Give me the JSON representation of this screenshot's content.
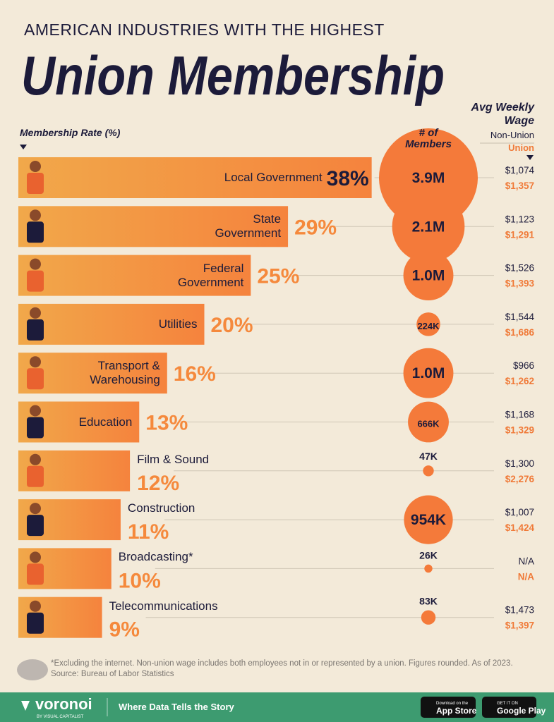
{
  "chart_data": {
    "type": "bar",
    "subtitle": "AMERICAN INDUSTRIES WITH THE HIGHEST",
    "title": "Union Membership",
    "wage_header": "Avg Weekly Wage",
    "categories": [
      "Local Government",
      "State Government",
      "Federal Government",
      "Utilities",
      "Transport & Warehousing",
      "Education",
      "Film & Sound",
      "Construction",
      "Broadcasting*",
      "Telecommunications"
    ],
    "xlim": [
      0,
      40
    ],
    "series": [
      {
        "name": "Membership Rate (%)",
        "color": "#f5893c",
        "values": [
          38,
          29,
          25,
          20,
          16,
          13,
          12,
          11,
          10,
          9
        ],
        "value_labels": [
          "38%",
          "29%",
          "25%",
          "20%",
          "16%",
          "13%",
          "12%",
          "11%",
          "10%",
          "9%"
        ]
      },
      {
        "name": "# of Members",
        "color": "#f47a3a",
        "values": [
          3900000,
          2100000,
          1000000,
          224000,
          1000000,
          666000,
          47000,
          954000,
          26000,
          83000
        ],
        "value_labels": [
          "3.9M",
          "2.1M",
          "1.0M",
          "224K",
          "1.0M",
          "666K",
          "47K",
          "954K",
          "26K",
          "83K"
        ]
      },
      {
        "name": "Non-Union",
        "color": "#1c1b3a",
        "values": [
          1074,
          1123,
          1526,
          1544,
          966,
          1168,
          1300,
          1007,
          null,
          1473
        ],
        "value_labels": [
          "$1,074",
          "$1,123",
          "$1,526",
          "$1,544",
          "$966",
          "$1,168",
          "$1,300",
          "$1,007",
          "N/A",
          "$1,473"
        ]
      },
      {
        "name": "Union",
        "color": "#f07a38",
        "values": [
          1357,
          1291,
          1393,
          1686,
          1262,
          1329,
          2276,
          1424,
          null,
          1397
        ],
        "value_labels": [
          "$1,357",
          "$1,291",
          "$1,393",
          "$1,686",
          "$1,262",
          "$1,329",
          "$2,276",
          "$1,424",
          "N/A",
          "$1,397"
        ]
      }
    ],
    "footnote": "*Excluding the internet. Non-union wage includes both employees not in or represented by a union. Figures rounded. As of 2023.",
    "source": "Source: Bureau of Labor Statistics"
  },
  "footer": {
    "brand": "voronoi",
    "brand_sub": "BY VISUAL CAPITALIST",
    "tagline": "Where Data Tells the Story",
    "app_store": [
      "Download on the",
      "App Store"
    ],
    "google_play": [
      "GET IT ON",
      "Google Play"
    ]
  }
}
